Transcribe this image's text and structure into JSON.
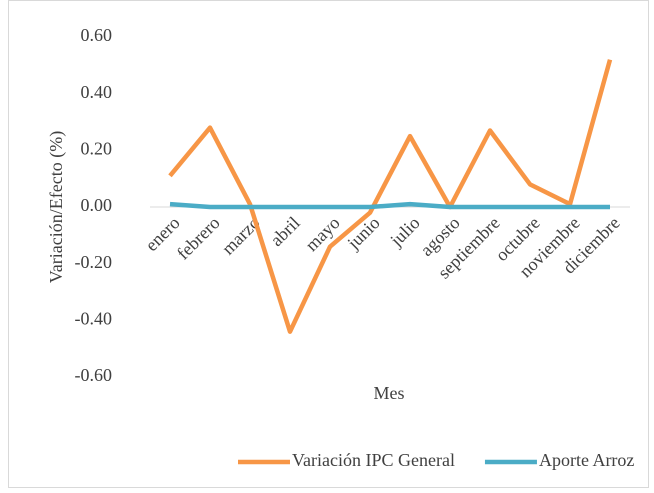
{
  "chart_data": {
    "type": "line",
    "y_label": "Variación/Efecto (%)",
    "x_label": "Mes",
    "categories": [
      "enero",
      "febrero",
      "marzo",
      "abril",
      "mayo",
      "junio",
      "julio",
      "agosto",
      "septiembre",
      "octubre",
      "noviembre",
      "diciembre"
    ],
    "series": [
      {
        "name": "Variación IPC General",
        "color": "#f79646",
        "values": [
          0.11,
          0.28,
          0.01,
          -0.44,
          -0.14,
          -0.02,
          0.25,
          0.0,
          0.27,
          0.08,
          0.01,
          0.52
        ]
      },
      {
        "name": "Aporte Arroz",
        "color": "#4bacc6",
        "values": [
          0.01,
          0.0,
          0.0,
          0.0,
          0.0,
          0.0,
          0.01,
          0.0,
          0.0,
          0.0,
          0.0,
          0.0
        ]
      }
    ],
    "ylim": [
      -0.6,
      0.6
    ],
    "yticks": [
      {
        "value": 0.6,
        "label": "0.60"
      },
      {
        "value": 0.4,
        "label": "0.40"
      },
      {
        "value": 0.2,
        "label": "0.20"
      },
      {
        "value": 0,
        "label": "0.00"
      },
      {
        "value": -0.2,
        "label": "-0.20"
      },
      {
        "value": -0.4,
        "label": "-0.40"
      },
      {
        "value": -0.6,
        "label": "-0.60"
      }
    ],
    "grid": false,
    "legend": "bottom"
  }
}
